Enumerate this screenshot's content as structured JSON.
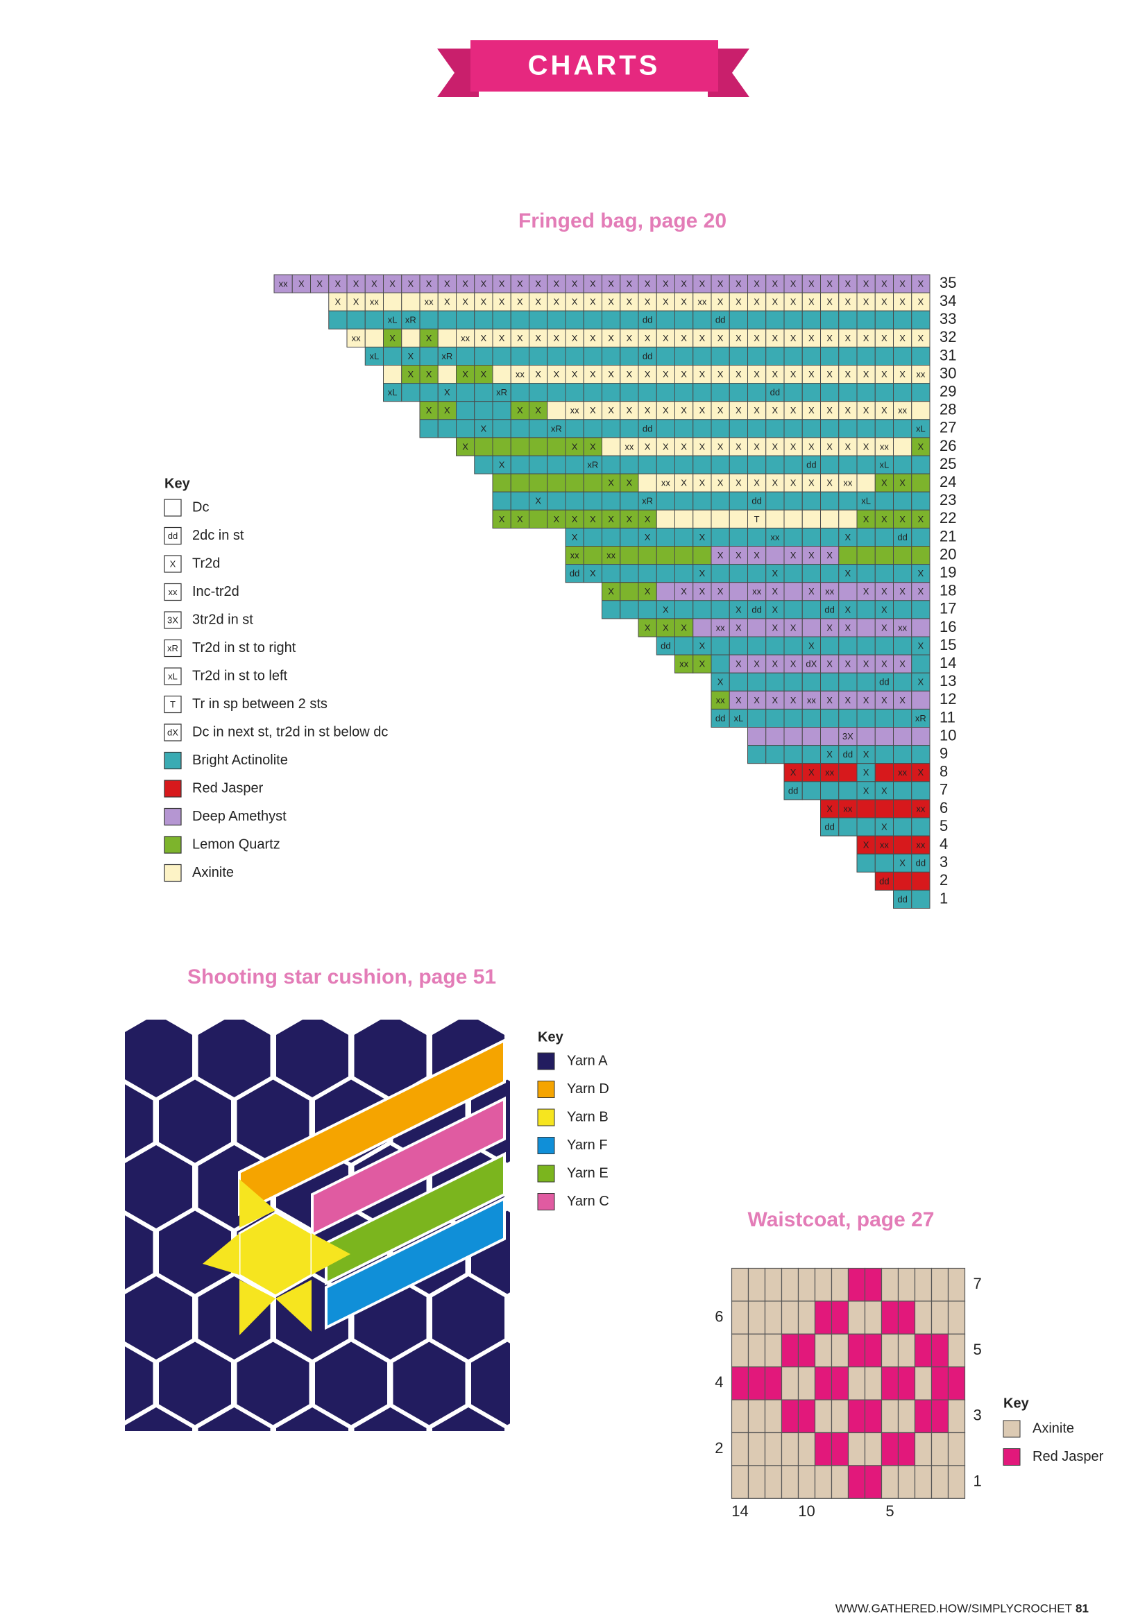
{
  "header": {
    "title": "CHARTS"
  },
  "fringed_bag": {
    "title": "Fringed bag, page 20",
    "palette": {
      "T": "#3aabb3",
      "R": "#d7191c",
      "P": "#b596d2",
      "G": "#7db42c",
      "C": "#fdf3c6"
    },
    "rows": [
      {
        "number": 35,
        "colors": "PPPPPPPPPPPPPPPPPPPPPPPPPPPPPPPPPPPP",
        "symbols": [
          "xx",
          "X",
          "X",
          "X",
          "X",
          "X",
          "X",
          "X",
          "X",
          "X",
          "X",
          "X",
          "X",
          "X",
          "X",
          "X",
          "X",
          "X",
          "X",
          "X",
          "X",
          "X",
          "X",
          "X",
          "X",
          "X",
          "X",
          "X",
          "X",
          "X",
          "X",
          "X",
          "X",
          "X",
          "X",
          "X"
        ]
      },
      {
        "number": 34,
        "colors": "CCCCCCCCCCCCCCCCCCCCCCCCCCCCCCCCC",
        "symbols": [
          "X",
          "X",
          "xx",
          null,
          null,
          "xx",
          "X",
          "X",
          "X",
          "X",
          "X",
          "X",
          "X",
          "X",
          "X",
          "X",
          "X",
          "X",
          "X",
          "X",
          "xx",
          "X",
          "X",
          "X",
          "X",
          "X",
          "X",
          "X",
          "X",
          "X",
          "X",
          "X",
          "X"
        ]
      },
      {
        "number": 33,
        "colors": "TTTTTTTTTTTTTTTTTTTTTTTTTTTTTTTTT",
        "symbols": {
          "3": "xL",
          "4": "xR",
          "17": "dd",
          "21": "dd"
        }
      },
      {
        "number": 32,
        "colors": "CCGCGCCCCCCCCCCCCCCCCCCCCCCCCCCC",
        "symbols": [
          "xx",
          null,
          "X",
          null,
          "X",
          null,
          "xx",
          "X",
          "X",
          "X",
          "X",
          "X",
          "X",
          "X",
          "X",
          "X",
          "X",
          "X",
          "X",
          "X",
          "X",
          "X",
          "X",
          "X",
          "X",
          "X",
          "X",
          "X",
          "X",
          "X",
          "X",
          "X"
        ]
      },
      {
        "number": 31,
        "colors": "TTTTTTTTTTTTTTTTTTTTTTTTTTTTTTT",
        "symbols": {
          "0": "xL",
          "2": "X",
          "4": "xR",
          "15": "dd"
        }
      },
      {
        "number": 30,
        "colors": "CGGCGGCCCCCCCCCCCCCCCCCCCCCCCC",
        "symbols": [
          null,
          "X",
          "X",
          null,
          "X",
          "X",
          null,
          "xx",
          "X",
          "X",
          "X",
          "X",
          "X",
          "X",
          "X",
          "X",
          "X",
          "X",
          "X",
          "X",
          "X",
          "X",
          "X",
          "X",
          "X",
          "X",
          "X",
          "X",
          "X",
          "xx"
        ]
      },
      {
        "number": 29,
        "colors": "TTTTTTTTTTTTTTTTTTTTTTTTTTTTTT",
        "symbols": {
          "0": "xL",
          "3": "X",
          "6": "xR",
          "21": "dd"
        }
      },
      {
        "number": 28,
        "colors": "GGTTTGGCCCCCCCCCCCCCCCCCCCCC",
        "symbols": [
          "X",
          "X",
          null,
          null,
          null,
          "X",
          "X",
          null,
          "xx",
          "X",
          "X",
          "X",
          "X",
          "X",
          "X",
          "X",
          "X",
          "X",
          "X",
          "X",
          "X",
          "X",
          "X",
          "X",
          "X",
          "X",
          "xx",
          null
        ]
      },
      {
        "number": 27,
        "colors": "TTTTTTTTTTTTTTTTTTTTTTTTTTTT",
        "symbols": {
          "3": "X",
          "7": "xR",
          "12": "dd",
          "27": "xL"
        }
      },
      {
        "number": 26,
        "colors": "GGGGGGGGCCCCCCCCCCCCCCCCCG",
        "symbols": [
          "X",
          null,
          null,
          null,
          null,
          null,
          "X",
          "X",
          null,
          "xx",
          "X",
          "X",
          "X",
          "X",
          "X",
          "X",
          "X",
          "X",
          "X",
          "X",
          "X",
          "X",
          "X",
          "xx",
          null,
          "X"
        ]
      },
      {
        "number": 25,
        "colors": "TTTTTTTTTTTTTTTTTTTTTTTTT",
        "symbols": {
          "1": "X",
          "6": "xR",
          "18": "dd",
          "22": "xL"
        }
      },
      {
        "number": 24,
        "colors": "GGGGGGGGCCCCCCCCCCCCCGGG",
        "symbols": [
          null,
          null,
          null,
          null,
          null,
          null,
          "X",
          "X",
          null,
          "xx",
          "X",
          "X",
          "X",
          "X",
          "X",
          "X",
          "X",
          "X",
          "X",
          "xx",
          null,
          "X",
          "X",
          null
        ]
      },
      {
        "number": 23,
        "colors": "TTTTTTTTTTTTTTTTTTTTTTTT",
        "symbols": {
          "2": "X",
          "8": "xR",
          "14": "dd",
          "20": "xL"
        }
      },
      {
        "number": 22,
        "colors": "GGGGGGGGGCCCCCCCCCCCGGGG",
        "symbols": [
          "X",
          "X",
          null,
          "X",
          "X",
          "X",
          "X",
          "X",
          "X",
          null,
          null,
          null,
          null,
          null,
          "T",
          null,
          null,
          null,
          null,
          null,
          "X",
          "X",
          "X",
          "X"
        ]
      },
      {
        "number": 21,
        "colors": "TTTTTTTTTTTTTTTTTTTT",
        "symbols": {
          "0": "X",
          "4": "X",
          "7": "X",
          "11": "xx",
          "15": "X",
          "18": "dd"
        }
      },
      {
        "number": 20,
        "colors": "GGGGGGGGPPPPPPPGGGGG",
        "symbols": {
          "0": "xx",
          "2": "xx",
          "8": "X",
          "9": "X",
          "10": "X",
          "12": "X",
          "13": "X",
          "14": "X"
        }
      },
      {
        "number": 19,
        "colors": "TTTTTTTTTTTTTTTTTTTT",
        "symbols": {
          "0": "dd",
          "1": "X",
          "7": "X",
          "11": "X",
          "15": "X",
          "19": "X"
        }
      },
      {
        "number": 18,
        "colors": "GGGPPPPPPPPPPPPPPP",
        "symbols": {
          "0": "X",
          "2": "X",
          "4": "X",
          "5": "X",
          "6": "X",
          "8": "xx",
          "9": "X",
          "11": "X",
          "12": "xx",
          "14": "X",
          "15": "X",
          "16": "X",
          "17": "X"
        }
      },
      {
        "number": 17,
        "colors": "TTTTTTTTTTTTTTTTTT",
        "symbols": {
          "3": "X",
          "7": "X",
          "8": "dd",
          "9": "X",
          "12": "dd",
          "13": "X",
          "15": "X"
        }
      },
      {
        "number": 16,
        "colors": "GGGPPPPPPPPPPPPP",
        "symbols": {
          "0": "X",
          "1": "X",
          "2": "X",
          "4": "xx",
          "5": "X",
          "7": "X",
          "8": "X",
          "10": "X",
          "11": "X",
          "13": "X",
          "14": "xx"
        }
      },
      {
        "number": 15,
        "colors": "TTTTTTTTTTTTTTT",
        "symbols": {
          "0": "dd",
          "2": "X",
          "8": "X",
          "14": "X"
        }
      },
      {
        "number": 14,
        "colors": "GGTPPPPPPPPPPT",
        "symbols": {
          "0": "xx",
          "1": "X",
          "3": "X",
          "4": "X",
          "5": "X",
          "6": "X",
          "7": "dX",
          "8": "X",
          "9": "X",
          "10": "X",
          "11": "X",
          "12": "X"
        }
      },
      {
        "number": 13,
        "colors": "TTTTTTTTTTTT",
        "symbols": {
          "0": "X",
          "9": "dd",
          "11": "X"
        }
      },
      {
        "number": 12,
        "colors": "GPPPPPPPPPPP",
        "symbols": {
          "0": "xx",
          "1": "X",
          "2": "X",
          "3": "X",
          "4": "X",
          "5": "xx",
          "6": "X",
          "7": "X",
          "8": "X",
          "9": "X",
          "10": "X"
        }
      },
      {
        "number": 11,
        "colors": "TTTTTTTTTTTT",
        "symbols": {
          "0": "dd",
          "1": "xL",
          "11": "xR"
        }
      },
      {
        "number": 10,
        "colors": "PPPPPPPPPP",
        "symbols": {
          "5": "3X"
        }
      },
      {
        "number": 9,
        "colors": "TTTTTTTTTT",
        "symbols": {
          "4": "X",
          "5": "dd",
          "6": "X"
        }
      },
      {
        "number": 8,
        "colors": "RRRRTRRR",
        "symbols": {
          "0": "X",
          "1": "X",
          "2": "xx",
          "4": "X",
          "6": "xx",
          "7": "X"
        }
      },
      {
        "number": 7,
        "colors": "TTTTTTTT",
        "symbols": {
          "0": "dd",
          "4": "X",
          "5": "X"
        }
      },
      {
        "number": 6,
        "colors": "RRRRRR",
        "symbols": {
          "0": "X",
          "1": "xx",
          "5": "xx"
        }
      },
      {
        "number": 5,
        "colors": "TTTTTT",
        "symbols": {
          "0": "dd",
          "3": "X"
        }
      },
      {
        "number": 4,
        "colors": "RRRR",
        "symbols": {
          "0": "X",
          "1": "xx",
          "3": "xx"
        }
      },
      {
        "number": 3,
        "colors": "TTTT",
        "symbols": {
          "2": "X",
          "3": "dd"
        }
      },
      {
        "number": 2,
        "colors": "RRR",
        "symbols": {
          "0": "dd"
        }
      },
      {
        "number": 1,
        "colors": "TT",
        "symbols": {
          "0": "dd"
        }
      }
    ],
    "key": {
      "title": "Key",
      "items": [
        {
          "label": "Dc"
        },
        {
          "symbol": "dd",
          "label": "2dc in st"
        },
        {
          "symbol": "X",
          "label": "Tr2d"
        },
        {
          "symbol": "xx",
          "label": "Inc-tr2d"
        },
        {
          "symbol": "3X",
          "label": "3tr2d in st"
        },
        {
          "symbol": "xR",
          "label": "Tr2d in st to right"
        },
        {
          "symbol": "xL",
          "label": "Tr2d in st to left"
        },
        {
          "symbol": "T",
          "label": "Tr in sp between 2 sts"
        },
        {
          "symbol": "dX",
          "label": "Dc in next st, tr2d in st below dc"
        },
        {
          "code": "T",
          "label": "Bright Actinolite"
        },
        {
          "code": "R",
          "label": "Red Jasper"
        },
        {
          "code": "P",
          "label": "Deep Amethyst"
        },
        {
          "code": "G",
          "label": "Lemon Quartz"
        },
        {
          "code": "C",
          "label": "Axinite"
        }
      ]
    }
  },
  "shooting_star": {
    "title": "Shooting star cushion, page 51",
    "key": {
      "title": "Key",
      "items": [
        {
          "color": "#221c5f",
          "label": "Yarn A"
        },
        {
          "color": "#f5a400",
          "label": "Yarn D"
        },
        {
          "color": "#f6e51f",
          "label": "Yarn B"
        },
        {
          "color": "#108fd8",
          "label": "Yarn F"
        },
        {
          "color": "#7bb51e",
          "label": "Yarn E"
        },
        {
          "color": "#e05ba1",
          "label": "Yarn C"
        }
      ]
    }
  },
  "waistcoat": {
    "title": "Waistcoat, page 27",
    "palette": {
      "A": "#dccab3",
      "R": "#e2187b"
    },
    "grid": [
      "AAAAAAARRAAAAA",
      "AAAAARRAARRAAA",
      "AAARRAARRAARRA",
      "RRRAARRAARRARR",
      "AAARRAARRAARRA",
      "AAAAARRAARRAAA",
      "AAAAAAARRAAAAA"
    ],
    "left_labels": [
      2,
      4,
      6
    ],
    "right_labels": [
      1,
      3,
      5,
      7
    ],
    "bottom_labels": [
      14,
      10,
      5
    ],
    "key": {
      "title": "Key",
      "items": [
        {
          "code": "A",
          "label": "Axinite"
        },
        {
          "code": "R",
          "label": "Red Jasper"
        }
      ]
    }
  },
  "footer": {
    "url": "WWW.GATHERED.HOW/SIMPLYCROCHET",
    "page": "81"
  }
}
